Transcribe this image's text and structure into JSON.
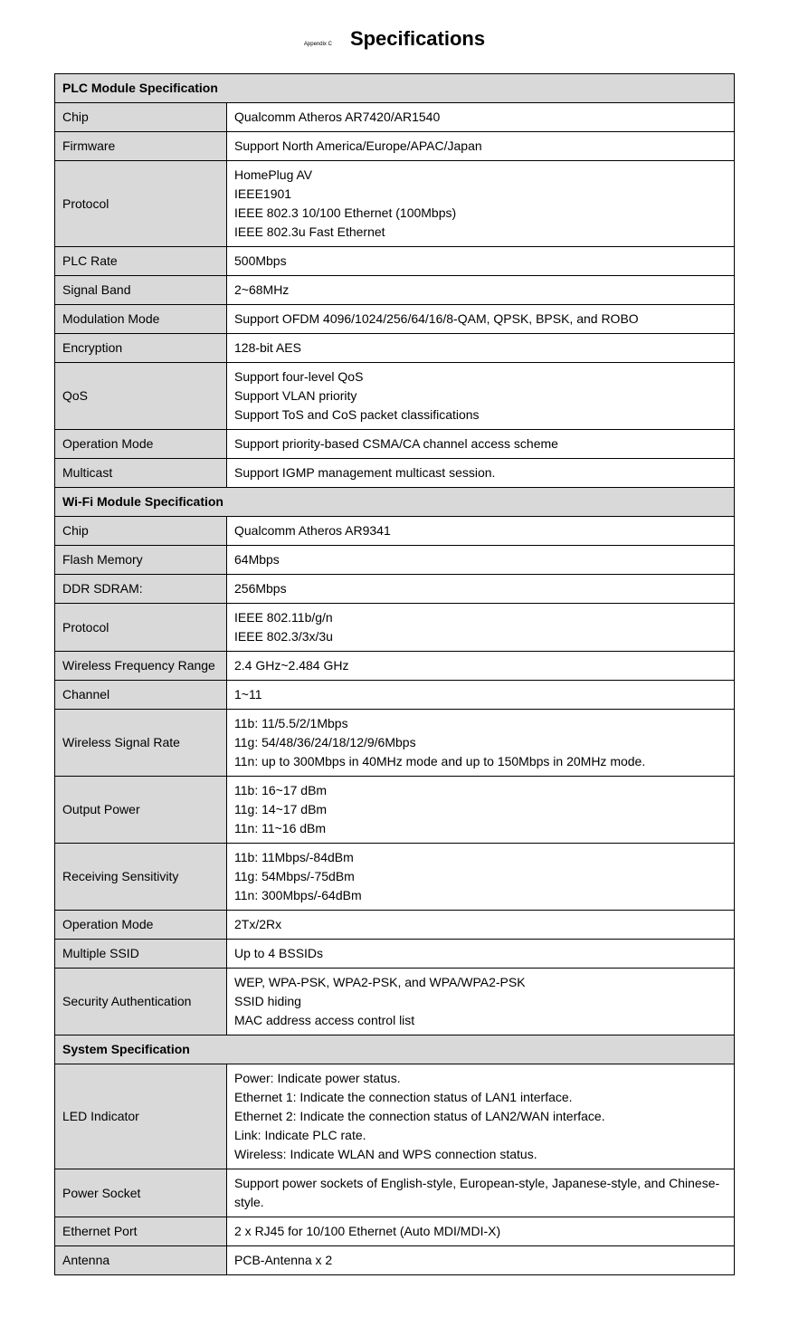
{
  "header": {
    "appendix": "Appendix C",
    "title": "Specifications"
  },
  "sections": {
    "plc": {
      "header": "PLC Module Specification",
      "rows": {
        "chip": {
          "label": "Chip",
          "value": "Qualcomm Atheros AR7420/AR1540"
        },
        "firmware": {
          "label": "Firmware",
          "value": "Support North America/Europe/APAC/Japan"
        },
        "protocol": {
          "label": "Protocol",
          "value": "HomePlug AV\nIEEE1901\nIEEE 802.3 10/100 Ethernet (100Mbps)\nIEEE 802.3u Fast Ethernet"
        },
        "plcRate": {
          "label": "PLC Rate",
          "value": "500Mbps"
        },
        "signalBand": {
          "label": "Signal Band",
          "value": "2~68MHz"
        },
        "modulationMode": {
          "label": "Modulation Mode",
          "value": "Support OFDM 4096/1024/256/64/16/8-QAM, QPSK, BPSK, and ROBO"
        },
        "encryption": {
          "label": "Encryption",
          "value": "128-bit AES"
        },
        "qos": {
          "label": "QoS",
          "value": "Support four-level QoS\nSupport VLAN priority\nSupport ToS and CoS packet classifications"
        },
        "operationMode": {
          "label": "Operation Mode",
          "value": "Support priority-based CSMA/CA channel access scheme"
        },
        "multicast": {
          "label": "Multicast",
          "value": "Support IGMP management multicast session."
        }
      }
    },
    "wifi": {
      "header": "Wi-Fi Module Specification",
      "rows": {
        "chip": {
          "label": "Chip",
          "value": "Qualcomm Atheros AR9341"
        },
        "flashMemory": {
          "label": "Flash Memory",
          "value": "64Mbps"
        },
        "ddrSdram": {
          "label": "DDR SDRAM:",
          "value": "256Mbps"
        },
        "protocol": {
          "label": "Protocol",
          "value": "IEEE 802.11b/g/n\nIEEE 802.3/3x/3u"
        },
        "wirelessFrequencyRange": {
          "label": "Wireless Frequency Range",
          "value": "2.4 GHz~2.484 GHz"
        },
        "channel": {
          "label": "Channel",
          "value": "1~11"
        },
        "wirelessSignalRate": {
          "label": "Wireless Signal Rate",
          "value": "11b: 11/5.5/2/1Mbps\n11g: 54/48/36/24/18/12/9/6Mbps\n11n: up to 300Mbps in 40MHz mode and up to 150Mbps in 20MHz mode."
        },
        "outputPower": {
          "label": "Output Power",
          "value": "11b: 16~17 dBm\n11g: 14~17 dBm\n11n: 11~16 dBm"
        },
        "receivingSensitivity": {
          "label": "Receiving Sensitivity",
          "value": "11b: 11Mbps/-84dBm\n11g: 54Mbps/-75dBm\n11n: 300Mbps/-64dBm"
        },
        "operationMode": {
          "label": "Operation Mode",
          "value": "2Tx/2Rx"
        },
        "multipleSsid": {
          "label": "Multiple SSID",
          "value": "Up to 4 BSSIDs"
        },
        "securityAuthentication": {
          "label": "Security Authentication",
          "value": "WEP, WPA-PSK, WPA2-PSK, and WPA/WPA2-PSK\nSSID hiding\nMAC address access control list"
        }
      }
    },
    "system": {
      "header": "System Specification",
      "rows": {
        "ledIndicator": {
          "label": "LED Indicator",
          "value": "Power: Indicate power status.\nEthernet 1: Indicate the connection status of LAN1 interface.\nEthernet 2: Indicate the connection status of LAN2/WAN interface.\nLink: Indicate PLC rate.\nWireless: Indicate WLAN and WPS connection status."
        },
        "powerSocket": {
          "label": "Power Socket",
          "value": "Support power sockets of English-style, European-style, Japanese-style, and Chinese-style."
        },
        "ethernetPort": {
          "label": "Ethernet Port",
          "value": "2 x RJ45 for 10/100 Ethernet (Auto MDI/MDI-X)"
        },
        "antenna": {
          "label": "Antenna",
          "value": "PCB-Antenna x 2"
        }
      }
    }
  },
  "styling": {
    "tableBorderColor": "#000000",
    "sectionHeaderBg": "#d9d9d9",
    "labelCellBg": "#d9d9d9",
    "valueCellBg": "#ffffff",
    "bodyBg": "#ffffff",
    "textColor": "#000000",
    "titleFontSize": 22,
    "cellFontSize": 14,
    "appendixFontSize": 6
  }
}
